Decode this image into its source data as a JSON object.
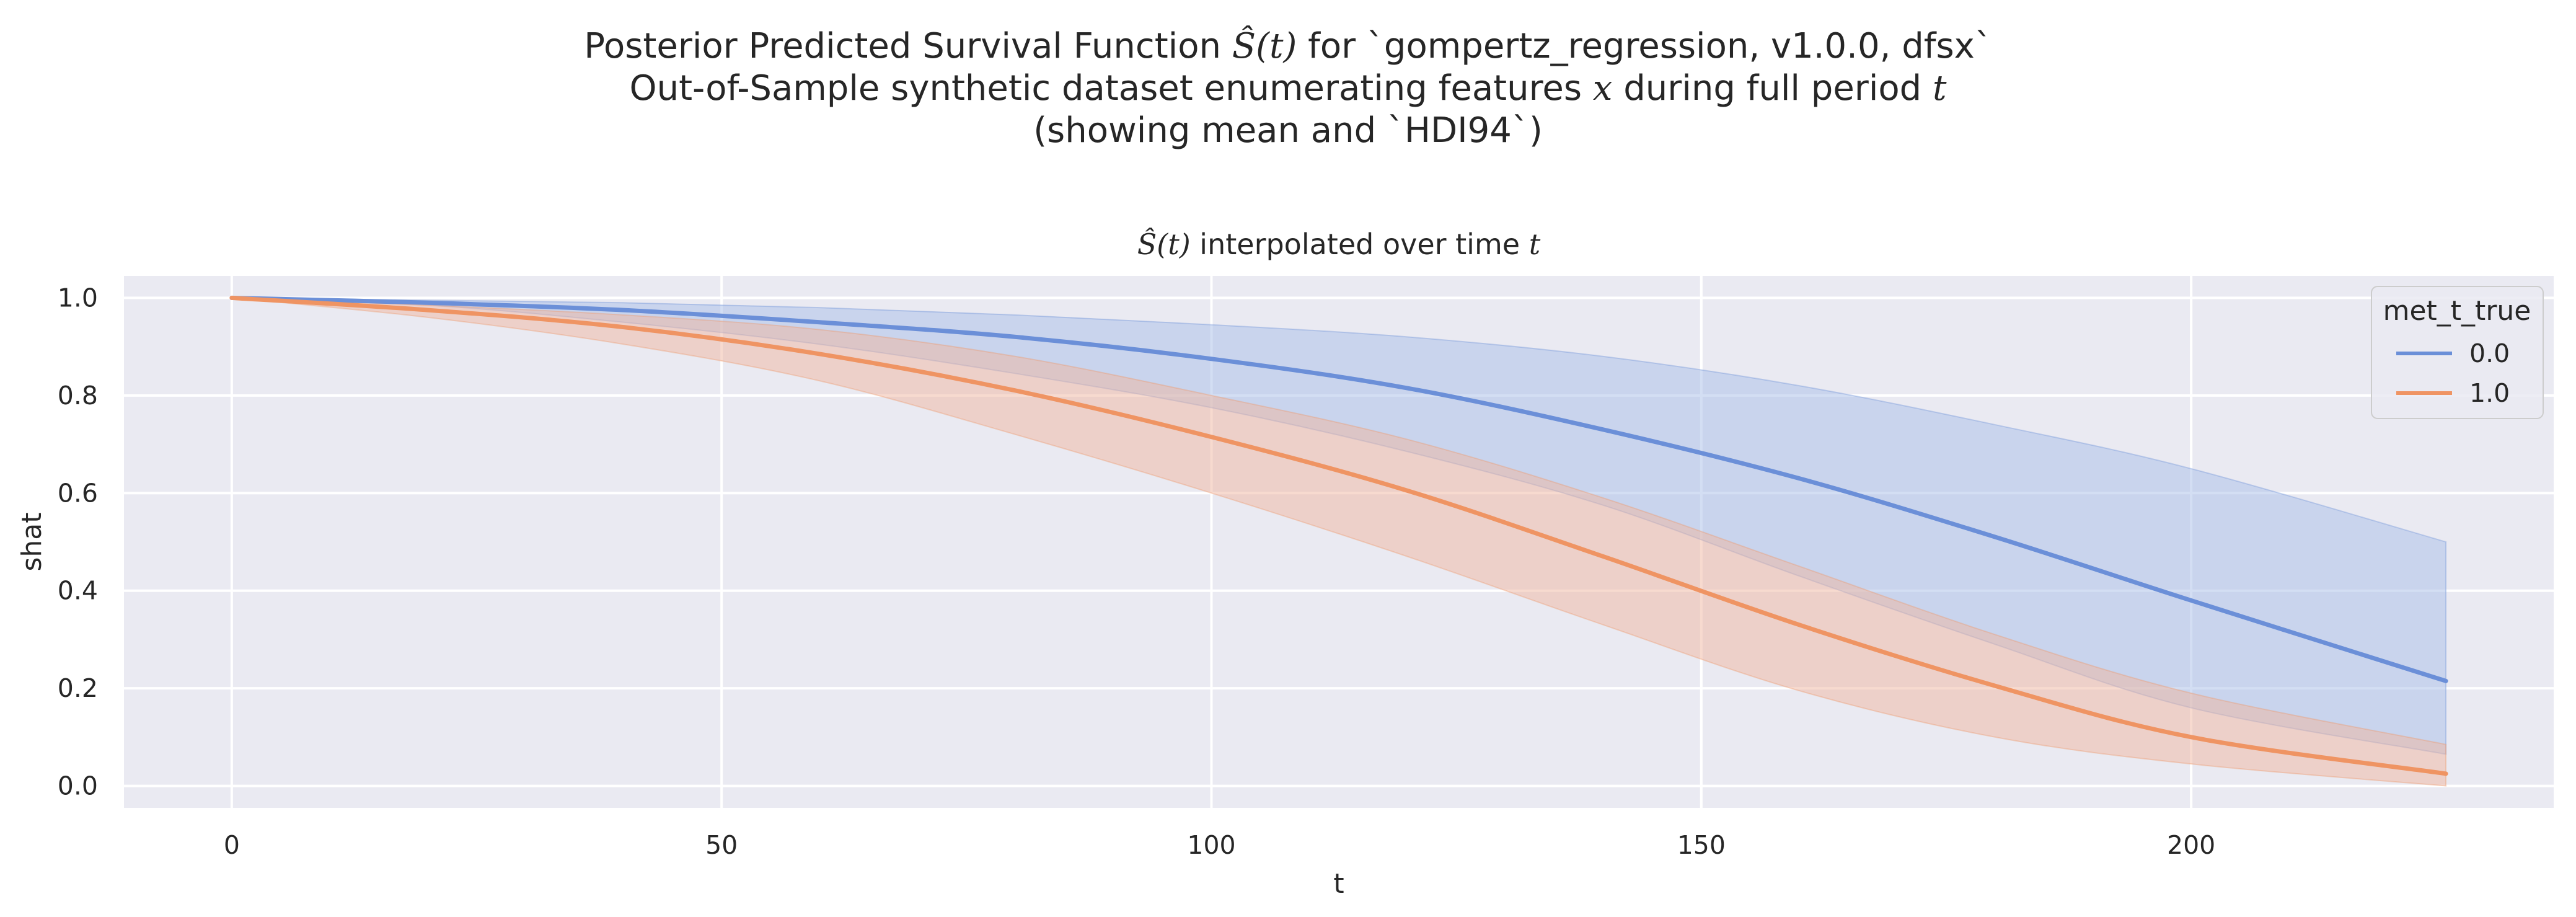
{
  "title": {
    "line1_pre": "Posterior Predicted Survival Function ",
    "line1_math": "Ŝ(t)",
    "line1_post": " for `gompertz_regression, v1.0.0, dfsx`",
    "line2_pre": "Out-of-Sample synthetic dataset enumerating features ",
    "line2_math1": "x",
    "line2_mid": " during full period ",
    "line2_math2": "t",
    "line3": "(showing mean and `HDI94`)"
  },
  "chart_data": {
    "type": "line",
    "subtitle_math": "Ŝ(t)",
    "subtitle_mid": " interpolated over time ",
    "subtitle_math2": "t",
    "xlabel": "t",
    "ylabel": "shat",
    "xlim": [
      -11,
      237
    ],
    "ylim": [
      -0.045,
      1.045
    ],
    "xticks": [
      0,
      50,
      100,
      150,
      200
    ],
    "xtick_labels": [
      "0",
      "50",
      "100",
      "150",
      "200"
    ],
    "yticks": [
      0.0,
      0.2,
      0.4,
      0.6,
      0.8,
      1.0
    ],
    "ytick_labels": [
      "0.0",
      "0.2",
      "0.4",
      "0.6",
      "0.8",
      "1.0"
    ],
    "grid": true,
    "legend": {
      "title": "met_t_true",
      "placement": "top-right"
    },
    "x": [
      0,
      20,
      40,
      60,
      80,
      100,
      120,
      140,
      160,
      180,
      200,
      226
    ],
    "series": [
      {
        "name": "0.0",
        "color": "#6b8fd8",
        "fill_color": "#a7bde8",
        "mean": [
          1.0,
          0.99,
          0.975,
          0.95,
          0.92,
          0.875,
          0.815,
          0.73,
          0.63,
          0.51,
          0.38,
          0.215
        ],
        "lower": [
          1.0,
          0.985,
          0.95,
          0.905,
          0.845,
          0.775,
          0.685,
          0.575,
          0.43,
          0.29,
          0.16,
          0.065
        ],
        "upper": [
          1.0,
          0.995,
          0.99,
          0.98,
          0.965,
          0.945,
          0.92,
          0.88,
          0.82,
          0.74,
          0.65,
          0.5
        ]
      },
      {
        "name": "1.0",
        "color": "#ef9463",
        "fill_color": "#f0b6a0",
        "mean": [
          1.0,
          0.975,
          0.94,
          0.885,
          0.81,
          0.715,
          0.605,
          0.47,
          0.33,
          0.205,
          0.1,
          0.025
        ],
        "lower": [
          1.0,
          0.96,
          0.905,
          0.83,
          0.72,
          0.6,
          0.47,
          0.33,
          0.195,
          0.1,
          0.045,
          0.0
        ],
        "upper": [
          1.0,
          0.985,
          0.965,
          0.935,
          0.88,
          0.8,
          0.71,
          0.59,
          0.45,
          0.31,
          0.19,
          0.085
        ]
      }
    ]
  }
}
